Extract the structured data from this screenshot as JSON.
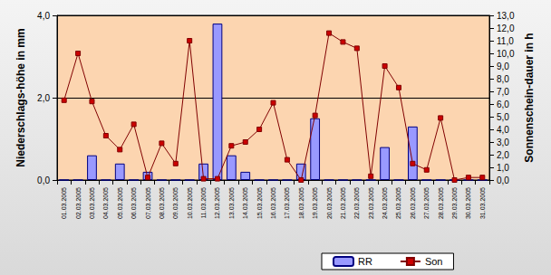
{
  "chart_data": {
    "type": "bar",
    "categories": [
      "01.03.2005",
      "02.03.2005",
      "03.03.2005",
      "04.03.2005",
      "05.03.2005",
      "06.03.2005",
      "07.03.2005",
      "08.03.2005",
      "09.03.2005",
      "10.03.2005",
      "11.03.2005",
      "12.03.2005",
      "13.03.2005",
      "14.03.2005",
      "15.03.2005",
      "16.03.2005",
      "17.03.2005",
      "18.03.2005",
      "19.03.2005",
      "20.03.2005",
      "21.03.2005",
      "22.03.2005",
      "23.03.2005",
      "24.03.2005",
      "25.03.2005",
      "26.03.2005",
      "27.03.2005",
      "28.03.2005",
      "29.03.2005",
      "30.03.2005",
      "31.03.2005"
    ],
    "y_label": "Niederschlags-höhe in mm",
    "y2_label": "Sonnenschein-dauer in h",
    "ylim": [
      0,
      4
    ],
    "yticks": [
      {
        "value": 0,
        "label": "0,0"
      },
      {
        "value": 2,
        "label": "2,0"
      },
      {
        "value": 4,
        "label": "4,0"
      }
    ],
    "y2lim": [
      0,
      13
    ],
    "y2ticks": [
      {
        "value": 0,
        "label": "0,0"
      },
      {
        "value": 1,
        "label": "1,0"
      },
      {
        "value": 2,
        "label": "2,0"
      },
      {
        "value": 3,
        "label": "3,0"
      },
      {
        "value": 4,
        "label": "4,0"
      },
      {
        "value": 5,
        "label": "5,0"
      },
      {
        "value": 6,
        "label": "6,0"
      },
      {
        "value": 7,
        "label": "7,0"
      },
      {
        "value": 8,
        "label": "8,0"
      },
      {
        "value": 9,
        "label": "9,0"
      },
      {
        "value": 10,
        "label": "10,0"
      },
      {
        "value": 11,
        "label": "11,0"
      },
      {
        "value": 12,
        "label": "12,0"
      },
      {
        "value": 13,
        "label": "13,0"
      }
    ],
    "grid": true,
    "legend": "bottom",
    "series": [
      {
        "name": "RR",
        "type": "bar",
        "color": "#9999ff",
        "values": [
          0,
          0,
          0.6,
          0,
          0.4,
          0,
          0.2,
          0,
          0,
          0,
          0.4,
          3.8,
          0.6,
          0.2,
          0,
          0,
          0,
          0.4,
          1.5,
          0,
          0,
          0,
          0,
          0.8,
          0,
          1.3,
          0,
          0,
          0,
          0,
          0
        ]
      },
      {
        "name": "Son",
        "type": "line",
        "axis": "y2",
        "color": "#800000",
        "marker": "square",
        "line_style": "solid",
        "values": [
          6.3,
          10.0,
          6.2,
          3.5,
          2.4,
          4.4,
          0.2,
          2.9,
          1.3,
          11.0,
          0.1,
          0.1,
          2.7,
          3.0,
          4.0,
          6.1,
          1.6,
          0.0,
          5.1,
          11.6,
          10.9,
          10.4,
          0.3,
          9.0,
          7.3,
          1.3,
          0.8,
          4.9,
          0.0,
          0.2,
          0.2
        ]
      }
    ]
  }
}
